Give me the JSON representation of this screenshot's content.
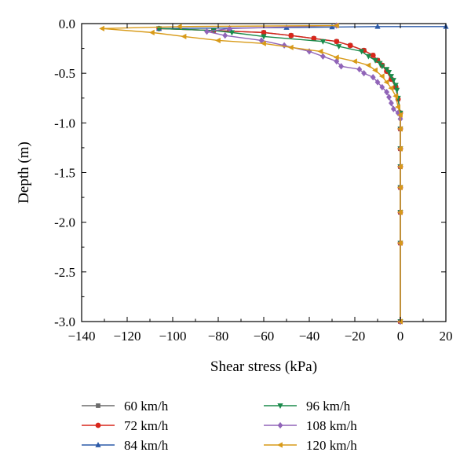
{
  "chart_data": {
    "type": "line",
    "title": "",
    "xlabel": "Shear stress (kPa)",
    "ylabel": "Depth (m)",
    "xlim": [
      -140,
      20
    ],
    "ylim": [
      -3.0,
      0.0
    ],
    "x_ticks": [
      -140,
      -120,
      -100,
      -80,
      -60,
      -40,
      -20,
      0,
      20
    ],
    "x_tick_labels": [
      "−140",
      "−120",
      "−100",
      "−80",
      "−60",
      "−40",
      "−20",
      "0",
      "20"
    ],
    "y_ticks": [
      0.0,
      -0.5,
      -1.0,
      -1.5,
      -2.0,
      -2.5,
      -3.0
    ],
    "y_tick_labels": [
      "0.0",
      "-0.5",
      "-1.0",
      "-1.5",
      "-2.0",
      "-2.5",
      "-3.0"
    ],
    "grid": false,
    "legend_position": "bottom",
    "series": [
      {
        "name": "60 km/h",
        "color": "#6b6b6b",
        "marker": "square",
        "x": [
          -106,
          -82,
          -60,
          -48,
          -38,
          -28,
          -22,
          -16,
          -12,
          -10,
          -8,
          -6,
          -4,
          -2,
          -1,
          0,
          0,
          0,
          0,
          0,
          0,
          0,
          0
        ],
        "y": [
          -0.05,
          -0.07,
          -0.09,
          -0.12,
          -0.15,
          -0.18,
          -0.22,
          -0.27,
          -0.32,
          -0.37,
          -0.42,
          -0.48,
          -0.56,
          -0.64,
          -0.76,
          -0.9,
          -1.06,
          -1.26,
          -1.44,
          -1.65,
          -1.9,
          -2.21,
          -3.0
        ]
      },
      {
        "name": "72 km/h",
        "color": "#d8261b",
        "marker": "circle",
        "x": [
          -106,
          -82,
          -60,
          -48,
          -38,
          -28,
          -22,
          -16,
          -12,
          -10,
          -8,
          -6,
          -4,
          -2,
          -1,
          0,
          0,
          0,
          0,
          0,
          0,
          0,
          0
        ],
        "y": [
          -0.05,
          -0.07,
          -0.09,
          -0.12,
          -0.15,
          -0.18,
          -0.22,
          -0.27,
          -0.32,
          -0.37,
          -0.42,
          -0.48,
          -0.56,
          -0.64,
          -0.76,
          -0.9,
          -1.06,
          -1.26,
          -1.44,
          -1.65,
          -1.9,
          -2.21,
          -3.0
        ]
      },
      {
        "name": "84 km/h",
        "color": "#2c5aa8",
        "marker": "triangle-up",
        "x": [
          -106,
          -75,
          -50,
          -30,
          -10,
          20
        ],
        "y": [
          -0.05,
          -0.045,
          -0.04,
          -0.035,
          -0.03,
          -0.03
        ]
      },
      {
        "name": "96 km/h",
        "color": "#1a8a4a",
        "marker": "triangle-down",
        "x": [
          -106,
          -82,
          -74,
          -60,
          -34,
          -27,
          -17,
          -14,
          -11,
          -9,
          -8,
          -6,
          -5,
          -4,
          -3,
          -2,
          -1.5,
          -1,
          0,
          0,
          0,
          0,
          0,
          0,
          0,
          0
        ],
        "y": [
          -0.05,
          -0.07,
          -0.09,
          -0.13,
          -0.18,
          -0.23,
          -0.28,
          -0.33,
          -0.37,
          -0.4,
          -0.43,
          -0.46,
          -0.49,
          -0.53,
          -0.57,
          -0.62,
          -0.67,
          -0.75,
          -0.9,
          -1.06,
          -1.26,
          -1.44,
          -1.65,
          -1.9,
          -2.21,
          -3.0
        ]
      },
      {
        "name": "108 km/h",
        "color": "#9064b8",
        "marker": "diamond",
        "x": [
          -28,
          -75,
          -85,
          -77,
          -61,
          -51,
          -40,
          -34,
          -28,
          -26,
          -18,
          -16,
          -12,
          -10,
          -8,
          -6,
          -5,
          -4,
          -3,
          -1,
          0,
          0,
          0,
          0,
          0,
          0,
          0,
          0
        ],
        "y": [
          -0.02,
          -0.05,
          -0.08,
          -0.12,
          -0.17,
          -0.22,
          -0.28,
          -0.33,
          -0.38,
          -0.43,
          -0.46,
          -0.5,
          -0.54,
          -0.59,
          -0.64,
          -0.69,
          -0.74,
          -0.8,
          -0.86,
          -0.9,
          -0.96,
          -1.06,
          -1.26,
          -1.44,
          -1.65,
          -1.9,
          -2.21,
          -3.0
        ]
      },
      {
        "name": "120 km/h",
        "color": "#d89a18",
        "marker": "triangle-left",
        "x": [
          -28,
          -97,
          -131,
          -109,
          -95,
          -80,
          -60,
          -48,
          -35,
          -28,
          -20,
          -14,
          -11,
          -8,
          -6,
          -4,
          -2,
          -1,
          0,
          0,
          0,
          0,
          0,
          0,
          0,
          0
        ],
        "y": [
          -0.02,
          -0.03,
          -0.05,
          -0.09,
          -0.13,
          -0.17,
          -0.2,
          -0.24,
          -0.28,
          -0.34,
          -0.38,
          -0.42,
          -0.47,
          -0.53,
          -0.59,
          -0.65,
          -0.73,
          -0.84,
          -0.92,
          -1.06,
          -1.26,
          -1.44,
          -1.65,
          -1.9,
          -2.21,
          -3.0
        ]
      }
    ]
  }
}
